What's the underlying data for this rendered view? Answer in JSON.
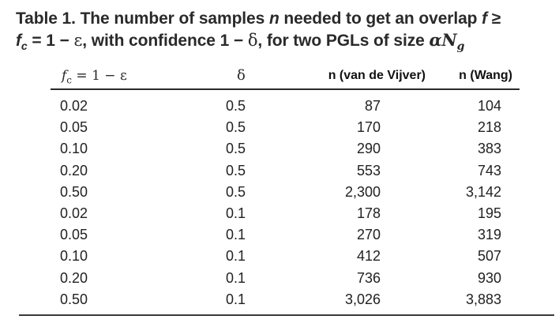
{
  "caption": {
    "line1_prefix": "Table 1. The number of samples ",
    "line1_n": "n",
    "line1_mid": " needed to get an overlap ",
    "line1_f": "f",
    "line1_geq": " ≥",
    "line2_f": "f",
    "line2_c": "c",
    "line2_eq": " = 1 − ",
    "line2_eps": "ε",
    "line2_conf": ", with confidence 1 − ",
    "line2_delta": "δ",
    "line2_rest": ", for two PGLs of size ",
    "line2_alpha": "α",
    "line2_N": "N",
    "line2_g": "g"
  },
  "table": {
    "headers": {
      "fc_f": "f",
      "fc_c": "c",
      "fc_rest": " = 1 − ε",
      "delta": "δ",
      "vdv": "n (van de Vijver)",
      "wang": "n (Wang)"
    },
    "rows": [
      {
        "fc": "0.02",
        "delta": "0.5",
        "vdv": "87",
        "wang": "104"
      },
      {
        "fc": "0.05",
        "delta": "0.5",
        "vdv": "170",
        "wang": "218"
      },
      {
        "fc": "0.10",
        "delta": "0.5",
        "vdv": "290",
        "wang": "383"
      },
      {
        "fc": "0.20",
        "delta": "0.5",
        "vdv": "553",
        "wang": "743"
      },
      {
        "fc": "0.50",
        "delta": "0.5",
        "vdv": "2,300",
        "wang": "3,142"
      },
      {
        "fc": "0.02",
        "delta": "0.1",
        "vdv": "178",
        "wang": "195"
      },
      {
        "fc": "0.05",
        "delta": "0.1",
        "vdv": "270",
        "wang": "319"
      },
      {
        "fc": "0.10",
        "delta": "0.1",
        "vdv": "412",
        "wang": "507"
      },
      {
        "fc": "0.20",
        "delta": "0.1",
        "vdv": "736",
        "wang": "930"
      },
      {
        "fc": "0.50",
        "delta": "0.1",
        "vdv": "3,026",
        "wang": "3,883"
      }
    ]
  }
}
